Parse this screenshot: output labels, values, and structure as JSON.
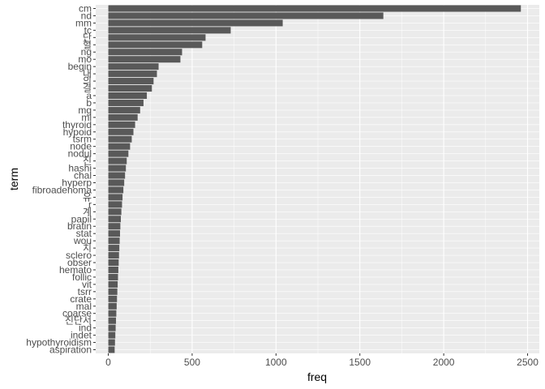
{
  "chart_data": {
    "type": "bar",
    "orientation": "horizontal",
    "xlabel": "freq",
    "ylabel": "term",
    "xlim": [
      -75,
      2570
    ],
    "xticks": [
      0,
      500,
      1000,
      1500,
      2000,
      2500
    ],
    "grid": true,
    "bar_color": "#595959",
    "panel_color": "#ebebeb",
    "categories": [
      "cm",
      "nd",
      "mm",
      "tc",
      "단",
      "혈",
      "ng",
      "mo",
      "begin",
      "내",
      "의",
      "결",
      "a",
      "b",
      "mg",
      "ml",
      "thyroid",
      "hypoid",
      "tsrm",
      "node",
      "nodul",
      "진",
      "hashi",
      "chal",
      "hyperp",
      "fibroadenoma",
      "유",
      "r",
      "계",
      "papil",
      "bratin",
      "stat",
      "wou",
      "치",
      "sclero",
      "obser",
      "hemato",
      "follic",
      "vit",
      "tsrr",
      "crate",
      "mal",
      "coarse",
      "진단서",
      "ind",
      "indet",
      "hypothyroidism",
      "aspiration"
    ],
    "values": [
      2460,
      1640,
      1040,
      730,
      580,
      560,
      440,
      430,
      300,
      290,
      270,
      260,
      230,
      210,
      190,
      175,
      160,
      150,
      140,
      130,
      120,
      110,
      105,
      100,
      95,
      90,
      85,
      82,
      78,
      75,
      72,
      70,
      68,
      66,
      64,
      62,
      60,
      58,
      56,
      54,
      52,
      50,
      48,
      46,
      44,
      42,
      40,
      38
    ]
  }
}
